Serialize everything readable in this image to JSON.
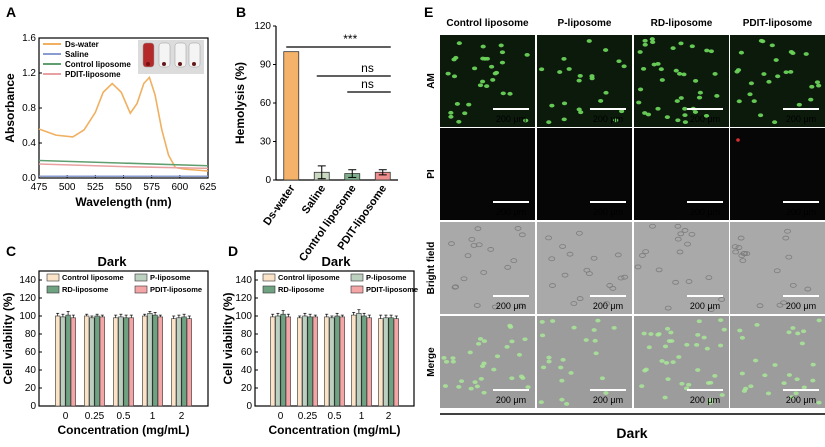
{
  "panel_letters": {
    "A": "A",
    "B": "B",
    "C": "C",
    "D": "D",
    "E": "E"
  },
  "chart_data": [
    {
      "panel": "A",
      "type": "line",
      "xlabel": "Wavelength (nm)",
      "ylabel": "Absorbance",
      "xlim": [
        475,
        625
      ],
      "ylim": [
        0,
        1.6
      ],
      "x_ticks": [
        "475",
        "500",
        "525",
        "550",
        "575",
        "600",
        "625"
      ],
      "y_ticks": [
        "0.0",
        "0.4",
        "0.8",
        "1.2",
        "1.6"
      ],
      "legend_position": "top-left",
      "series": [
        {
          "name": "Ds-water",
          "color": "#f0b060",
          "x": [
            475,
            490,
            505,
            515,
            525,
            532,
            540,
            548,
            556,
            562,
            568,
            573,
            578,
            584,
            590,
            596,
            605,
            625
          ],
          "y": [
            0.56,
            0.49,
            0.47,
            0.55,
            0.75,
            0.98,
            1.08,
            0.98,
            0.74,
            0.85,
            1.08,
            1.15,
            0.95,
            0.55,
            0.26,
            0.12,
            0.1,
            0.08
          ]
        },
        {
          "name": "Saline",
          "color": "#8a9bd0",
          "x": [
            475,
            625
          ],
          "y": [
            0.02,
            0.02
          ]
        },
        {
          "name": "Control liposome",
          "color": "#5f9e6e",
          "x": [
            475,
            550,
            625
          ],
          "y": [
            0.2,
            0.17,
            0.14
          ]
        },
        {
          "name": "PDIT-liposome",
          "color": "#e8a0a0",
          "x": [
            475,
            550,
            625
          ],
          "y": [
            0.16,
            0.13,
            0.11
          ]
        }
      ]
    },
    {
      "panel": "B",
      "type": "bar",
      "ylabel": "Hemolysis (%)",
      "ylim": [
        0,
        120
      ],
      "y_ticks": [
        "0",
        "30",
        "60",
        "90",
        "120"
      ],
      "categories": [
        "Ds-water",
        "Saline",
        "Control liposome",
        "PDIT-liposome"
      ],
      "values": [
        100,
        6,
        5,
        6
      ],
      "errors": [
        0,
        5,
        3,
        2
      ],
      "colors": [
        "#f4b26b",
        "#c9d8c0",
        "#7fae8c",
        "#ee8f8f"
      ],
      "significance": [
        {
          "label": "***",
          "from": 0,
          "to": 3
        },
        {
          "label": "ns",
          "from": 1,
          "to": 3
        },
        {
          "label": "ns",
          "from": 2,
          "to": 3
        }
      ]
    },
    {
      "panel": "C",
      "type": "bar",
      "title": "Dark",
      "xlabel": "Concentration (mg/mL)",
      "ylabel": "Cell viability (%)",
      "ylim": [
        0,
        150
      ],
      "y_ticks": [
        "0",
        "20",
        "40",
        "60",
        "80",
        "100",
        "120",
        "140"
      ],
      "categories": [
        "0",
        "0.25",
        "0.5",
        "1",
        "2"
      ],
      "series": [
        {
          "name": "Control liposome",
          "color": "#fbe3c8",
          "values": [
            100,
            100,
            98,
            100,
            97
          ],
          "errors": [
            3,
            2,
            3,
            2,
            3
          ]
        },
        {
          "name": "P-liposome",
          "color": "#bcd0c0",
          "values": [
            99,
            98,
            99,
            103,
            98
          ],
          "errors": [
            3,
            2,
            3,
            2,
            3
          ]
        },
        {
          "name": "RD-liposome",
          "color": "#6fa281",
          "values": [
            101,
            100,
            98,
            101,
            99
          ],
          "errors": [
            4,
            2,
            3,
            3,
            3
          ]
        },
        {
          "name": "PDIT-liposome",
          "color": "#f4a5a5",
          "values": [
            98,
            99,
            98,
            99,
            97
          ],
          "errors": [
            3,
            2,
            3,
            2,
            3
          ]
        }
      ]
    },
    {
      "panel": "D",
      "type": "bar",
      "title": "Dark",
      "xlabel": "Concentration (mg/mL)",
      "ylabel": "Cell viability (%)",
      "ylim": [
        0,
        150
      ],
      "y_ticks": [
        "0",
        "20",
        "40",
        "60",
        "80",
        "100",
        "120",
        "140"
      ],
      "categories": [
        "0",
        "0.25",
        "0.5",
        "1",
        "2"
      ],
      "series": [
        {
          "name": "Control liposome",
          "color": "#fbe3c8",
          "values": [
            99,
            98,
            99,
            101,
            97
          ],
          "errors": [
            3,
            2,
            3,
            3,
            4
          ]
        },
        {
          "name": "P-liposome",
          "color": "#bcd0c0",
          "values": [
            100,
            100,
            98,
            103,
            98
          ],
          "errors": [
            3,
            3,
            2,
            4,
            3
          ]
        },
        {
          "name": "RD-liposome",
          "color": "#6fa281",
          "values": [
            102,
            99,
            100,
            100,
            98
          ],
          "errors": [
            4,
            3,
            3,
            3,
            3
          ]
        },
        {
          "name": "PDIT-liposome",
          "color": "#f4a5a5",
          "values": [
            99,
            99,
            99,
            98,
            97
          ],
          "errors": [
            3,
            2,
            2,
            3,
            3
          ]
        }
      ]
    }
  ],
  "micrographs": {
    "columns": [
      "Control liposome",
      "P-liposome",
      "RD-liposome",
      "PDIT-liposome"
    ],
    "rows": [
      "AM",
      "PI",
      "Bright field",
      "Merge"
    ],
    "scale_bar": "200 μm",
    "footer": "Dark"
  }
}
